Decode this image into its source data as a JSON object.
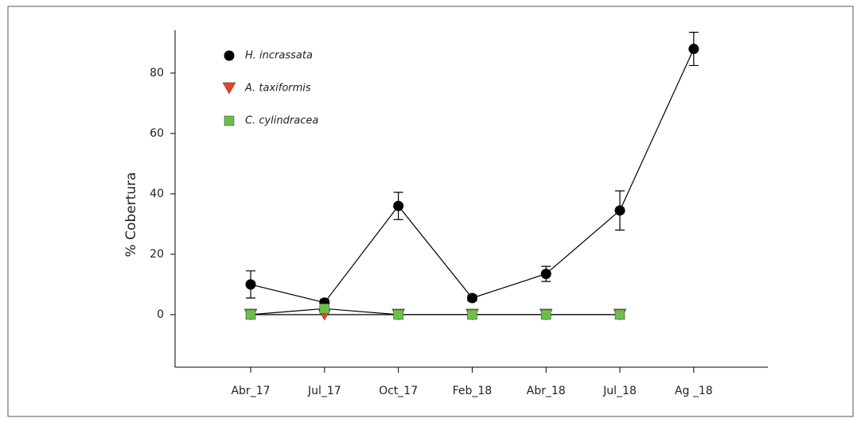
{
  "chart_data": {
    "type": "line",
    "ylabel": "% Cobertura",
    "categories": [
      "Abr_17",
      "Jul_17",
      "Oct_17",
      "Feb_18",
      "Abr_18",
      "Jul_18",
      "Ag _18"
    ],
    "ylim": [
      -17.4,
      94.2
    ],
    "yticks": [
      0,
      20,
      40,
      60,
      80
    ],
    "series": [
      {
        "name": "H. incrassata",
        "color": "#000000",
        "marker": "circle",
        "values": [
          10,
          4,
          36,
          5.5,
          13.5,
          34.5,
          88
        ],
        "errors": [
          4.5,
          1,
          4.5,
          1,
          2.5,
          6.5,
          5.5
        ]
      },
      {
        "name": "A. taxiformis",
        "color": "#e8432a",
        "marker": "triangle",
        "values": [
          0,
          0,
          0,
          0,
          0,
          0,
          null
        ]
      },
      {
        "name": "C. cylindracea",
        "color": "#6cc04a",
        "marker": "square",
        "values": [
          0,
          2,
          0,
          0,
          0,
          0,
          null
        ]
      }
    ]
  }
}
